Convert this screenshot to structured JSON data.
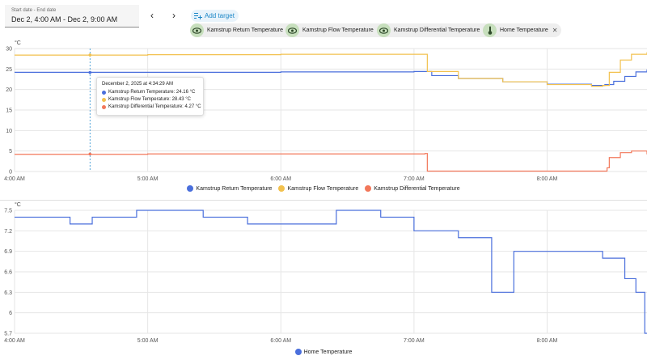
{
  "date_picker": {
    "label": "Start date - End date",
    "value": "Dec 2, 4:00 AM - Dec 2, 9:00 AM"
  },
  "nav": {
    "prev": "‹",
    "next": "›"
  },
  "add_target": {
    "label": "Add target",
    "icon": "add-list-icon",
    "color": "#1a86c7"
  },
  "targets": [
    {
      "label": "Kamstrup Return Temperature",
      "icon": "eye-icon"
    },
    {
      "label": "Kamstrup Flow Temperature",
      "icon": "eye-icon"
    },
    {
      "label": "Kamstrup Differential Temperature",
      "icon": "eye-icon"
    },
    {
      "label": "Home Temperature",
      "icon": "thermometer-icon"
    }
  ],
  "chart_data": [
    {
      "type": "line",
      "ylabel": "°C",
      "ylim": [
        0,
        30
      ],
      "yticks": [
        "0",
        "5",
        "10",
        "15",
        "20",
        "25",
        "30"
      ],
      "xlim": [
        "04:00",
        "08:45"
      ],
      "xticks": [
        "4:00 AM",
        "5:00 AM",
        "6:00 AM",
        "7:00 AM",
        "8:00 AM"
      ],
      "grid": true,
      "legend_position": "bottom",
      "series": [
        {
          "name": "Kamstrup Return Temperature",
          "color": "#4a6fdc",
          "points": [
            [
              "04:00",
              24.2
            ],
            [
              "05:00",
              24.2
            ],
            [
              "06:00",
              24.3
            ],
            [
              "07:00",
              24.4
            ],
            [
              "07:05",
              24.4
            ],
            [
              "07:08",
              23.4
            ],
            [
              "07:20",
              22.7
            ],
            [
              "07:40",
              21.9
            ],
            [
              "08:00",
              21.3
            ],
            [
              "08:20",
              21.0
            ],
            [
              "08:26",
              21.2
            ],
            [
              "08:30",
              22.0
            ],
            [
              "08:35",
              23.2
            ],
            [
              "08:40",
              24.3
            ],
            [
              "08:45",
              24.9
            ]
          ]
        },
        {
          "name": "Kamstrup Flow Temperature",
          "color": "#f2c14e",
          "points": [
            [
              "04:00",
              28.4
            ],
            [
              "05:00",
              28.5
            ],
            [
              "06:00",
              28.6
            ],
            [
              "07:00",
              28.6
            ],
            [
              "07:05",
              28.6
            ],
            [
              "07:06",
              24.4
            ],
            [
              "07:20",
              22.7
            ],
            [
              "07:40",
              21.9
            ],
            [
              "08:00",
              21.2
            ],
            [
              "08:20",
              20.8
            ],
            [
              "08:25",
              21.0
            ],
            [
              "08:28",
              24.2
            ],
            [
              "08:33",
              27.2
            ],
            [
              "08:38",
              28.6
            ],
            [
              "08:45",
              29.1
            ]
          ]
        },
        {
          "name": "Kamstrup Differential Temperature",
          "color": "#f2775a",
          "points": [
            [
              "04:00",
              4.2
            ],
            [
              "05:00",
              4.3
            ],
            [
              "06:00",
              4.3
            ],
            [
              "07:00",
              4.3
            ],
            [
              "07:05",
              4.4
            ],
            [
              "07:06",
              0.1
            ],
            [
              "07:40",
              0.1
            ],
            [
              "08:00",
              0.1
            ],
            [
              "08:25",
              0.1
            ],
            [
              "08:27",
              0.9
            ],
            [
              "08:28",
              3.4
            ],
            [
              "08:33",
              4.6
            ],
            [
              "08:38",
              5.0
            ],
            [
              "08:45",
              4.2
            ]
          ]
        }
      ]
    },
    {
      "type": "line",
      "ylabel": "°C",
      "ylim": [
        5.7,
        7.5
      ],
      "yticks": [
        "5.7",
        "6",
        "6.3",
        "6.6",
        "6.9",
        "7.2",
        "7.5"
      ],
      "xlim": [
        "04:00",
        "08:45"
      ],
      "xticks": [
        "4:00 AM",
        "5:00 AM",
        "6:00 AM",
        "7:00 AM",
        "8:00 AM"
      ],
      "grid": true,
      "legend_position": "bottom",
      "series": [
        {
          "name": "Home Temperature",
          "color": "#4a6fdc",
          "steps": [
            [
              "04:00",
              7.4
            ],
            [
              "04:25",
              7.3
            ],
            [
              "04:35",
              7.4
            ],
            [
              "04:55",
              7.5
            ],
            [
              "05:25",
              7.4
            ],
            [
              "05:45",
              7.3
            ],
            [
              "06:25",
              7.5
            ],
            [
              "06:45",
              7.4
            ],
            [
              "07:00",
              7.2
            ],
            [
              "07:20",
              7.1
            ],
            [
              "07:35",
              6.3
            ],
            [
              "07:45",
              6.9
            ],
            [
              "08:25",
              6.8
            ],
            [
              "08:35",
              6.5
            ],
            [
              "08:40",
              6.3
            ],
            [
              "08:44",
              5.7
            ],
            [
              "08:45",
              5.7
            ]
          ]
        }
      ]
    }
  ],
  "tooltip": {
    "title": "December 2, 2025 at 4:34:29 AM",
    "time": "04:34",
    "rows": [
      {
        "text": "Kamstrup Return Temperature: 24.16 °C",
        "color": "#4a6fdc",
        "value": 24.16
      },
      {
        "text": "Kamstrup Flow Temperature: 28.43 °C",
        "color": "#f2c14e",
        "value": 28.43
      },
      {
        "text": "Kamstrup Differential Temperature: 4.27 °C",
        "color": "#f2775a",
        "value": 4.27
      }
    ]
  }
}
